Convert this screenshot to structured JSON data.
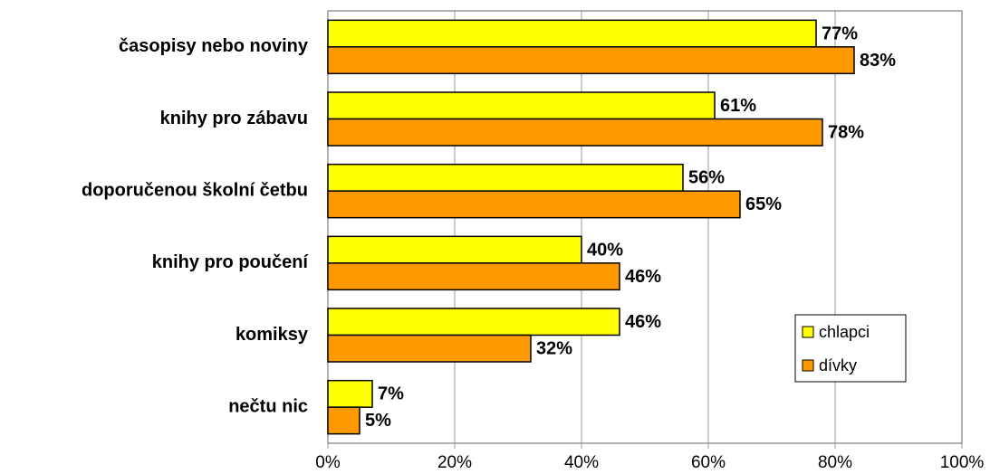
{
  "chart_data": {
    "type": "hbar",
    "categories": [
      "časopisy nebo noviny",
      "knihy pro zábavu",
      "doporučenou školní četbu",
      "knihy pro poučení",
      "komiksy",
      "nečtu nic"
    ],
    "series": [
      {
        "name": "chlapci",
        "color": "#ffff00",
        "values": [
          77,
          61,
          56,
          40,
          46,
          7
        ],
        "value_labels": [
          "77%",
          "61%",
          "56%",
          "40%",
          "46%",
          "7%"
        ]
      },
      {
        "name": "dívky",
        "color": "#ff9900",
        "values": [
          83,
          78,
          65,
          46,
          32,
          5
        ],
        "value_labels": [
          "83%",
          "78%",
          "65%",
          "46%",
          "32%",
          "5%"
        ]
      }
    ],
    "xlim": [
      0,
      100
    ],
    "xticks": [
      {
        "value": 0,
        "label": "0%"
      },
      {
        "value": 20,
        "label": "20%"
      },
      {
        "value": 40,
        "label": "40%"
      },
      {
        "value": 60,
        "label": "60%"
      },
      {
        "value": 80,
        "label": "80%"
      },
      {
        "value": 100,
        "label": "100%"
      }
    ],
    "grid": true,
    "legend": "right"
  }
}
